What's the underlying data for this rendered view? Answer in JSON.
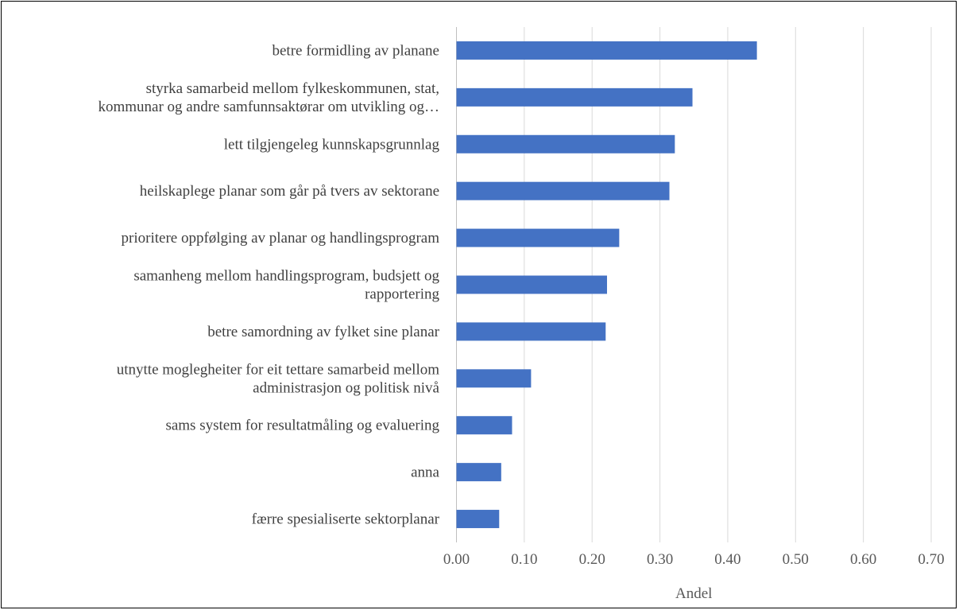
{
  "chart_data": {
    "type": "bar",
    "orientation": "horizontal",
    "categories": [
      [
        "betre formidling av planane"
      ],
      [
        "styrka samarbeid mellom fylkeskommunen, stat,",
        "kommunar og andre samfunnsaktørar om utvikling og…"
      ],
      [
        "lett tilgjengeleg  kunnskapsgrunnlag"
      ],
      [
        "heilskaplege planar som går på tvers av sektorane"
      ],
      [
        "prioritere oppfølging av planar og handlingsprogram"
      ],
      [
        "samanheng mellom handlingsprogram, budsjett og",
        "rapportering"
      ],
      [
        "betre samordning av fylket sine planar"
      ],
      [
        "utnytte moglegheiter for eit tettare samarbeid mellom",
        "administrasjon og politisk nivå"
      ],
      [
        "sams system for resultatmåling og evaluering"
      ],
      [
        "anna"
      ],
      [
        "færre spesialiserte sektorplanar"
      ]
    ],
    "values": [
      0.443,
      0.348,
      0.322,
      0.314,
      0.24,
      0.222,
      0.22,
      0.11,
      0.082,
      0.066,
      0.063
    ],
    "xlim": [
      0,
      0.7
    ],
    "ticks": [
      "0.00",
      "0.10",
      "0.20",
      "0.30",
      "0.40",
      "0.50",
      "0.60",
      "0.70"
    ],
    "xlabel": "Andel",
    "grid": "vertical",
    "legend": "none",
    "colors": {
      "bar": "#4472c4",
      "grid": "#d9d9d9",
      "category_text": "#404040",
      "tick_text": "#595959"
    }
  }
}
